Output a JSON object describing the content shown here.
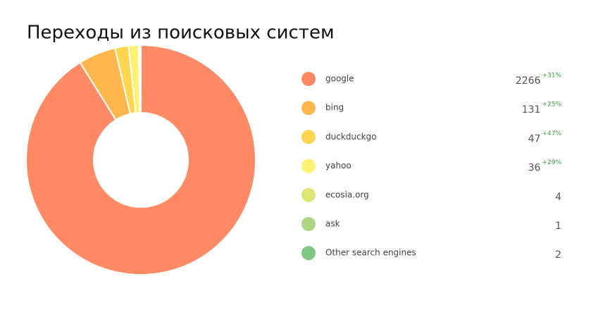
{
  "chart_data": {
    "type": "donut",
    "title": "Переходы из поисковых систем",
    "categories": [
      "google",
      "bing",
      "duckduckgo",
      "yahoo",
      "ecosia.org",
      "ask",
      "Other search engines"
    ],
    "values": [
      2266,
      131,
      47,
      36,
      4,
      1,
      2
    ],
    "changes": [
      "+31%",
      "+25%",
      "+47%",
      "+29%",
      null,
      null,
      null
    ],
    "colors": [
      "#ff8a65",
      "#ffb74d",
      "#ffd54f",
      "#fff176",
      "#dce775",
      "#aed581",
      "#81c784"
    ]
  }
}
